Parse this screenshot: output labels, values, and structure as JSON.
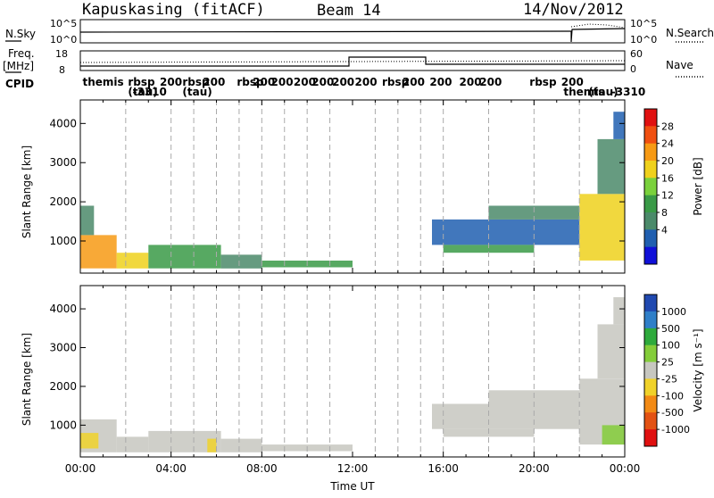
{
  "header": {
    "station": "Kapuskasing (fitACF)",
    "beam": "Beam 14",
    "date": "14/Nov/2012"
  },
  "top_panels": {
    "nsky_label": "N.Sky",
    "nsky_ticks": [
      "10^5",
      "10^0"
    ],
    "nsearch_label": "N.Search",
    "nsearch_ticks": [
      "10^5",
      "10^0"
    ],
    "freq_label_1": "Freq.",
    "freq_label_2": "[MHz]",
    "freq_ticks": [
      "18",
      "8"
    ],
    "nave_label": "Nave",
    "nave_ticks": [
      "60",
      "0"
    ],
    "cpid_label": "CPID",
    "cpid_entries": [
      {
        "hour": 0.1,
        "text": "themis",
        "row": 0
      },
      {
        "hour": 2.1,
        "text": "rbsp",
        "row": 0
      },
      {
        "hour": 2.1,
        "text": "(tau)",
        "row": 1
      },
      {
        "hour": 3.5,
        "text": "200",
        "row": 0
      },
      {
        "hour": 2.3,
        "text": "-3310",
        "row": 1
      },
      {
        "hour": 4.5,
        "text": "rbsp",
        "row": 0
      },
      {
        "hour": 4.5,
        "text": "(tau)",
        "row": 1
      },
      {
        "hour": 5.4,
        "text": "200",
        "row": 0
      },
      {
        "hour": 6.9,
        "text": "rbsp",
        "row": 0
      },
      {
        "hour": 7.6,
        "text": "200",
        "row": 0
      },
      {
        "hour": 8.4,
        "text": "200",
        "row": 0
      },
      {
        "hour": 9.4,
        "text": "200",
        "row": 0
      },
      {
        "hour": 10.2,
        "text": "200",
        "row": 0
      },
      {
        "hour": 11.1,
        "text": "200",
        "row": 0
      },
      {
        "hour": 12.1,
        "text": "200",
        "row": 0
      },
      {
        "hour": 13.3,
        "text": "rbsp",
        "row": 0
      },
      {
        "hour": 14.2,
        "text": "200",
        "row": 0
      },
      {
        "hour": 15.4,
        "text": "200",
        "row": 0
      },
      {
        "hour": 16.7,
        "text": "200",
        "row": 0
      },
      {
        "hour": 17.6,
        "text": "200",
        "row": 0
      },
      {
        "hour": 19.8,
        "text": "rbsp",
        "row": 0
      },
      {
        "hour": 21.2,
        "text": "200",
        "row": 0
      },
      {
        "hour": 21.3,
        "text": "themis",
        "row": 1
      },
      {
        "hour": 22.4,
        "text": "(tau)",
        "row": 1
      },
      {
        "hour": 23.4,
        "text": "-3310",
        "row": 1
      }
    ]
  },
  "chart_data": [
    {
      "type": "heatmap",
      "title": "",
      "xlabel": "",
      "ylabel": "Slant Range [km]",
      "xlim": [
        0,
        24
      ],
      "ylim": [
        180,
        4600
      ],
      "yticks": [
        1000,
        2000,
        3000,
        4000
      ],
      "colorbar": {
        "label": "Power [dB]",
        "ticks": [
          "28",
          "24",
          "20",
          "16",
          "12",
          "8",
          "4"
        ],
        "colors": [
          "#e01010",
          "#f04f10",
          "#f79a14",
          "#efd11c",
          "#7ad13c",
          "#3a9a47",
          "#4b8a6a",
          "#205fb0",
          "#1010d8"
        ],
        "range": [
          0,
          32
        ]
      },
      "description_of_data": "echo regions by time (hours UT) and slant range (km)",
      "regions": [
        {
          "t0": 0.0,
          "t1": 1.6,
          "r0": 300,
          "r1": 1150,
          "v": 22
        },
        {
          "t0": 0.0,
          "t1": 0.6,
          "r0": 1150,
          "r1": 1900,
          "v": 8
        },
        {
          "t0": 1.6,
          "t1": 3.0,
          "r0": 300,
          "r1": 700,
          "v": 18
        },
        {
          "t0": 3.0,
          "t1": 6.2,
          "r0": 300,
          "r1": 900,
          "v": 14
        },
        {
          "t0": 6.2,
          "t1": 8.0,
          "r0": 300,
          "r1": 650,
          "v": 10
        },
        {
          "t0": 8.0,
          "t1": 12.0,
          "r0": 330,
          "r1": 500,
          "v": 12
        },
        {
          "t0": 15.5,
          "t1": 22.0,
          "r0": 900,
          "r1": 1550,
          "v": 6
        },
        {
          "t0": 18.0,
          "t1": 22.0,
          "r0": 1550,
          "r1": 1900,
          "v": 8
        },
        {
          "t0": 16.0,
          "t1": 20.0,
          "r0": 700,
          "r1": 900,
          "v": 14
        },
        {
          "t0": 22.0,
          "t1": 24.0,
          "r0": 500,
          "r1": 2200,
          "v": 18
        },
        {
          "t0": 22.8,
          "t1": 24.0,
          "r0": 2200,
          "r1": 3600,
          "v": 8
        },
        {
          "t0": 23.5,
          "t1": 24.0,
          "r0": 3600,
          "r1": 4300,
          "v": 6
        }
      ]
    },
    {
      "type": "heatmap",
      "title": "",
      "xlabel": "Time UT",
      "ylabel": "Slant Range [km]",
      "xlim": [
        0,
        24
      ],
      "ylim": [
        180,
        4600
      ],
      "yticks": [
        1000,
        2000,
        3000,
        4000
      ],
      "xticks": [
        "00:00",
        "04:00",
        "08:00",
        "12:00",
        "16:00",
        "20:00",
        "00:00"
      ],
      "colorbar": {
        "label": "Velocity [m s⁻¹]",
        "ticks": [
          "1000",
          "500",
          "100",
          "25",
          "-25",
          "-100",
          "-500",
          "-1000"
        ],
        "colors": [
          "#2049b0",
          "#2f7fc8",
          "#2eaa3c",
          "#84cd3a",
          "#c7c7c0",
          "#f0d22a",
          "#f28a15",
          "#e35213",
          "#e01010"
        ],
        "range": [
          -1200,
          1200
        ]
      },
      "regions": [
        {
          "t0": 0.0,
          "t1": 1.6,
          "r0": 300,
          "r1": 1150,
          "v": 0
        },
        {
          "t0": 0.0,
          "t1": 0.8,
          "r0": 400,
          "r1": 800,
          "v": -400
        },
        {
          "t0": 1.6,
          "t1": 3.0,
          "r0": 300,
          "r1": 700,
          "v": 0
        },
        {
          "t0": 3.0,
          "t1": 6.2,
          "r0": 300,
          "r1": 850,
          "v": 0
        },
        {
          "t0": 5.6,
          "t1": 6.0,
          "r0": 300,
          "r1": 650,
          "v": -300
        },
        {
          "t0": 6.2,
          "t1": 8.0,
          "r0": 300,
          "r1": 650,
          "v": 60
        },
        {
          "t0": 8.0,
          "t1": 12.0,
          "r0": 330,
          "r1": 500,
          "v": -80
        },
        {
          "t0": 15.5,
          "t1": 22.0,
          "r0": 900,
          "r1": 1550,
          "v": 0
        },
        {
          "t0": 18.0,
          "t1": 22.0,
          "r0": 1550,
          "r1": 1900,
          "v": 0
        },
        {
          "t0": 16.0,
          "t1": 20.0,
          "r0": 700,
          "r1": 900,
          "v": 0
        },
        {
          "t0": 22.0,
          "t1": 24.0,
          "r0": 500,
          "r1": 2200,
          "v": 10
        },
        {
          "t0": 23.0,
          "t1": 24.0,
          "r0": 500,
          "r1": 1000,
          "v": 200
        },
        {
          "t0": 22.8,
          "t1": 24.0,
          "r0": 2200,
          "r1": 3600,
          "v": 0
        },
        {
          "t0": 23.5,
          "t1": 24.0,
          "r0": 3600,
          "r1": 4300,
          "v": 0
        }
      ]
    }
  ]
}
